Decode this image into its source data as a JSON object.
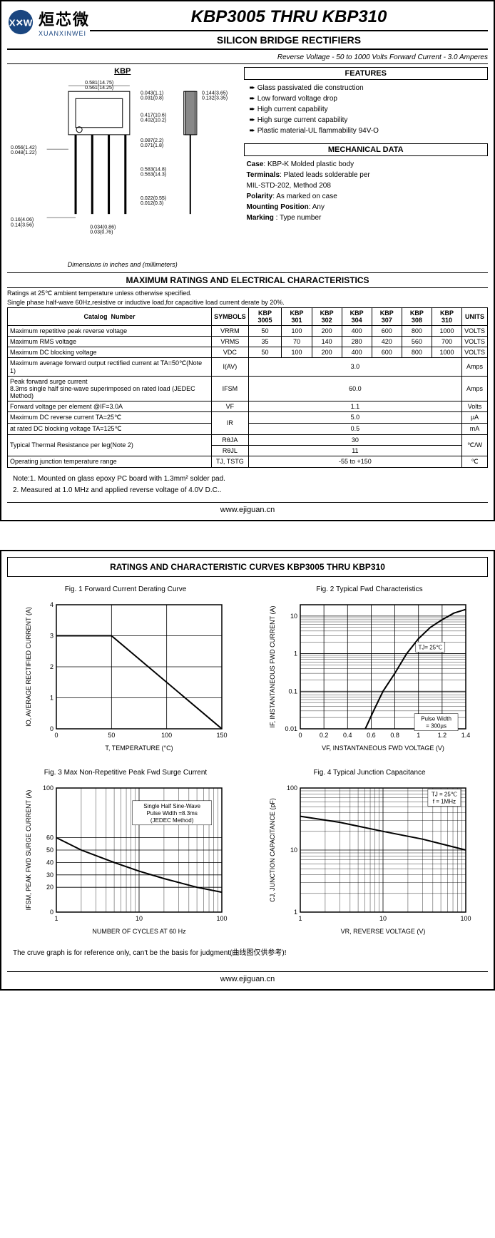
{
  "logo": {
    "cn": "烜芯微",
    "en": "XUANXINWEI",
    "circle_color": "#1a4680"
  },
  "title": "KBP3005 THRU KBP310",
  "subtitle": "SILICON BRIDGE RECTIFIERS",
  "spec_line": "Reverse Voltage - 50 to 1000 Volts    Forward Current - 3.0 Amperes",
  "package": {
    "label": "KBP",
    "caption": "Dimensions in inches and (millimeters)",
    "dims": [
      "0.581(14.75)",
      "0.561(14.25)",
      "0.043(1.1)",
      "0.031(0.8)",
      "0.144(3.65)",
      "0.132(3.35)",
      "0.417(10.6)",
      "0.402(10.2)",
      "0.087(2.2)",
      "0.071(1.8)",
      "0.056(1.42)",
      "0.048(1.22)",
      "0.583(14.8)",
      "0.563(14.3)",
      "0.022(0.55)",
      "0.012(0.3)",
      "0.16(4.06)",
      "0.14(3.56)",
      "0.034(0.86)",
      "0.03(0.76)"
    ]
  },
  "features": {
    "title": "FEATURES",
    "items": [
      "Glass passivated die construction",
      "Low forward voltage drop",
      "High current capability",
      "High  surge current capability",
      "Plastic material-UL flammability 94V-O"
    ]
  },
  "mechanical": {
    "title": "MECHANICAL DATA",
    "rows": [
      {
        "label": "Case",
        "value": ": KBP-K Molded plastic body"
      },
      {
        "label": "Terminals",
        "value": ": Plated leads solderable per"
      },
      {
        "label": "",
        "value": "              MIL-STD-202, Method 208"
      },
      {
        "label": "Polarity",
        "value": ": As marked on case"
      },
      {
        "label": "Mounting Position",
        "value": ": Any"
      },
      {
        "label": "Marking ",
        "value": ":  Type number"
      }
    ]
  },
  "ratings_section_title": "MAXIMUM RATINGS AND ELECTRICAL CHARACTERISTICS",
  "ratings_pre": [
    "Ratings at 25℃ ambient temperature unless otherwise specified.",
    "Single phase half-wave 60Hz,resistive or inductive load,for capacitive load current derate by 20%."
  ],
  "table": {
    "head": [
      "Catalog            Number",
      "SYMBOLS",
      "KBP 3005",
      "KBP 301",
      "KBP 302",
      "KBP 304",
      "KBP 307",
      "KBP 308",
      "KBP 310",
      "UNITS"
    ],
    "rows": [
      {
        "p": "Maximum repetitive peak reverse voltage",
        "s": "VRRM",
        "v": [
          "50",
          "100",
          "200",
          "400",
          "600",
          "800",
          "1000"
        ],
        "u": "VOLTS"
      },
      {
        "p": "Maximum RMS voltage",
        "s": "VRMS",
        "v": [
          "35",
          "70",
          "140",
          "280",
          "420",
          "560",
          "700"
        ],
        "u": "VOLTS"
      },
      {
        "p": "Maximum DC blocking voltage",
        "s": "VDC",
        "v": [
          "50",
          "100",
          "200",
          "400",
          "600",
          "800",
          "1000"
        ],
        "u": "VOLTS"
      },
      {
        "p": "Maximum average forward output rectified current at TA=50℃(Note 1)",
        "s": "I(AV)",
        "span": "3.0",
        "u": "Amps"
      },
      {
        "p": "Peak forward surge current\n8.3ms single half sine-wave superimposed on rated load (JEDEC Method)",
        "s": "IFSM",
        "span": "60.0",
        "u": "Amps"
      },
      {
        "p": "Forward voltage per element  @IF=3.0A",
        "s": "VF",
        "span": "1.1",
        "u": "Volts"
      },
      {
        "p": "Maximum DC reverse current     TA=25℃",
        "s": "IR",
        "span": "5.0",
        "u": "µA",
        "rowspan_sym": 2
      },
      {
        "p": "at rated DC blocking voltage     TA=125℃",
        "span": "0.5",
        "u": "mA"
      },
      {
        "p": "Typical Thermal Resistance per leg(Note 2)",
        "s": "RθJA",
        "span": "30",
        "u": "℃/W",
        "rowspan_u": 2
      },
      {
        "s": "RθJL",
        "span": "11"
      },
      {
        "p": "Operating junction temperature range",
        "s": "TJ, TSTG",
        "span": "-55 to +150",
        "u": "℃"
      }
    ]
  },
  "notes": [
    "Note:1. Mounted on  glass epoxy  PC board with 1.3mm² solder pad.",
    "         2. Measured at 1.0 MHz and applied reverse voltage of 4.0V D.C.."
  ],
  "footer_url": "www.ejiguan.cn",
  "curves": {
    "title": "RATINGS AND CHARACTERISTIC CURVES KBP3005 THRU KBP310",
    "charts": [
      {
        "title": "Fig. 1 Forward Current Derating Curve",
        "xlabel": "T, TEMPERATURE (°C)",
        "ylabel": "IO, AVERAGE RECTIFIED CURRENT (A)",
        "xlim": [
          0,
          150
        ],
        "ylim": [
          0,
          4
        ],
        "xticks": [
          0,
          50,
          100,
          150
        ],
        "yticks": [
          0,
          1.0,
          2.0,
          3.0,
          4.0
        ],
        "xscale": "linear",
        "yscale": "linear",
        "line": [
          [
            0,
            3.0
          ],
          [
            50,
            3.0
          ],
          [
            150,
            0
          ]
        ],
        "line_color": "#000",
        "line_width": 2,
        "grid_color": "#000"
      },
      {
        "title": "Fig. 2  Typical Fwd Characteristics",
        "xlabel": "VF, INSTANTANEOUS FWD VOLTAGE (V)",
        "ylabel": "IF, INSTANTANEOUS FWD CURRENT (A)",
        "xlim": [
          0,
          1.4
        ],
        "ylim": [
          0.01,
          20
        ],
        "xticks": [
          0,
          0.2,
          0.4,
          0.6,
          0.8,
          1.0,
          1.2,
          1.4
        ],
        "xscale": "linear",
        "yscale": "log",
        "line": [
          [
            0.55,
            0.01
          ],
          [
            0.62,
            0.03
          ],
          [
            0.7,
            0.1
          ],
          [
            0.8,
            0.3
          ],
          [
            0.9,
            1.0
          ],
          [
            1.0,
            2.5
          ],
          [
            1.1,
            5
          ],
          [
            1.2,
            8
          ],
          [
            1.3,
            12
          ],
          [
            1.4,
            15
          ]
        ],
        "line_color": "#000",
        "line_width": 2,
        "annotations": [
          {
            "text": "TJ= 25℃",
            "x": 1.1,
            "y": 1.5,
            "box": true
          },
          {
            "text": "Pulse Width\n= 300µs",
            "x": 1.15,
            "y": 0.015,
            "box": true
          }
        ],
        "grid_color": "#000"
      },
      {
        "title": "Fig. 3  Max Non-Repetitive Peak Fwd Surge Current",
        "xlabel": "NUMBER OF CYCLES AT 60 Hz",
        "ylabel": "IFSM, PEAK FWD SURGE CURRENT (A)",
        "xlim": [
          1,
          100
        ],
        "ylim": [
          0,
          100
        ],
        "yticks": [
          0,
          20,
          30,
          40,
          50,
          60,
          100
        ],
        "xscale": "log",
        "yscale": "linear",
        "line": [
          [
            1,
            60
          ],
          [
            2,
            50
          ],
          [
            5,
            40
          ],
          [
            10,
            33
          ],
          [
            20,
            27
          ],
          [
            50,
            20
          ],
          [
            100,
            16
          ]
        ],
        "line_color": "#000",
        "line_width": 2,
        "annotations": [
          {
            "text": "Single Half Sine-Wave\nPulse Width =8.3ms\n(JEDEC Method)",
            "x": 25,
            "y": 80,
            "box": true
          }
        ],
        "grid_color": "#000"
      },
      {
        "title": "Fig. 4  Typical Junction Capacitance",
        "xlabel": "VR, REVERSE VOLTAGE (V)",
        "ylabel": "CJ, JUNCTION CAPACITANCE (pF)",
        "xlim": [
          1,
          100
        ],
        "ylim": [
          1,
          100
        ],
        "xscale": "log",
        "yscale": "log",
        "line": [
          [
            1,
            35
          ],
          [
            3,
            28
          ],
          [
            10,
            20
          ],
          [
            30,
            15
          ],
          [
            100,
            10
          ]
        ],
        "line_color": "#000",
        "line_width": 2,
        "annotations": [
          {
            "text": "TJ = 25℃\nf = 1MHz",
            "x": 55,
            "y": 70,
            "box": true
          }
        ],
        "grid_color": "#000"
      }
    ],
    "footnote": "The cruve graph is for reference only, can't be the basis for judgment(曲线图仅供参考)!"
  }
}
